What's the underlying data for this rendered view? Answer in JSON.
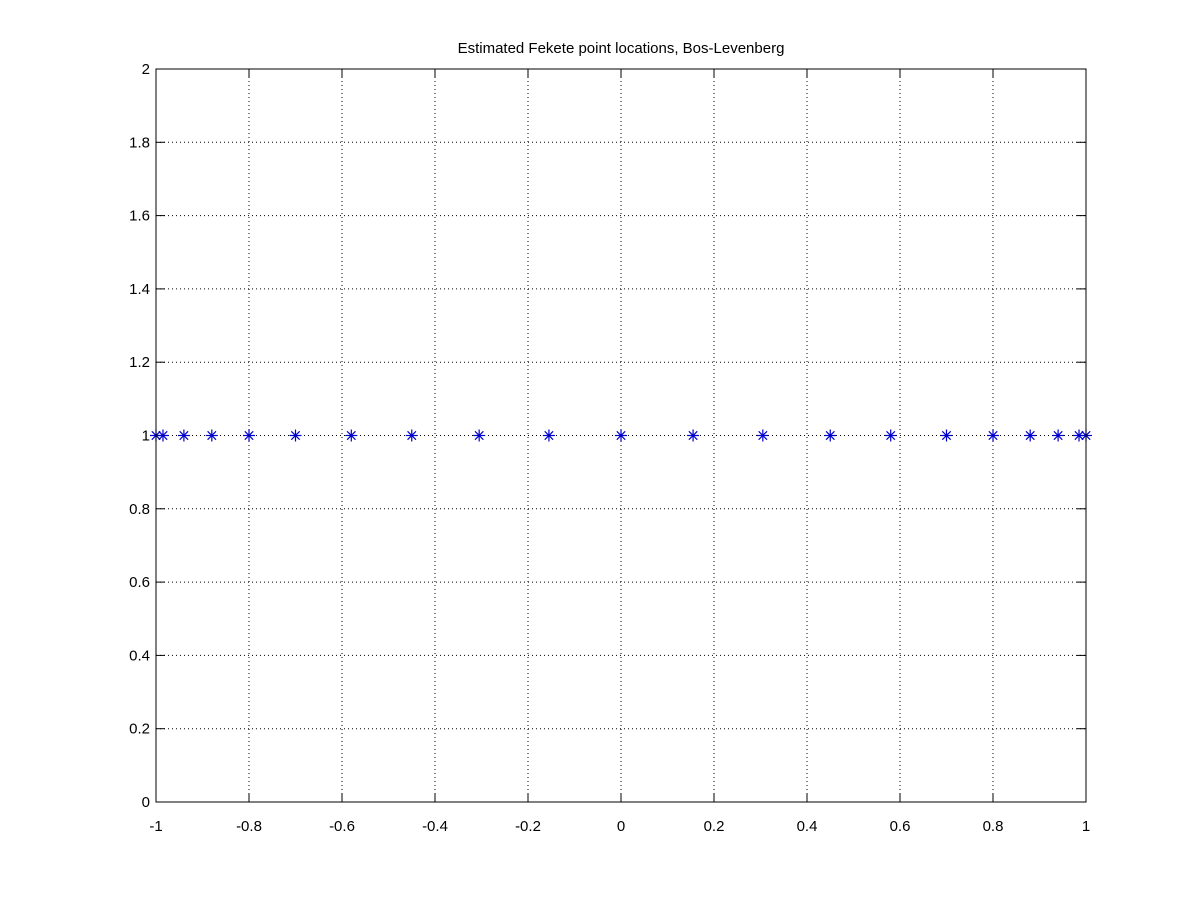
{
  "chart_data": {
    "type": "scatter",
    "title": "Estimated Fekete point locations, Bos-Levenberg",
    "xlabel": "",
    "ylabel": "",
    "xlim": [
      -1,
      1
    ],
    "ylim": [
      0,
      2
    ],
    "grid": true,
    "marker": "asterisk",
    "marker_color": "#0000cc",
    "x_ticks": [
      -1,
      -0.8,
      -0.6,
      -0.4,
      -0.2,
      0,
      0.2,
      0.4,
      0.6,
      0.8,
      1
    ],
    "x_tick_labels": [
      "-1",
      "-0.8",
      "-0.6",
      "-0.4",
      "-0.2",
      "0",
      "0.2",
      "0.4",
      "0.6",
      "0.8",
      "1"
    ],
    "y_ticks": [
      0,
      0.2,
      0.4,
      0.6,
      0.8,
      1,
      1.2,
      1.4,
      1.6,
      1.8,
      2
    ],
    "y_tick_labels": [
      "0",
      "0.2",
      "0.4",
      "0.6",
      "0.8",
      "1",
      "1.2",
      "1.4",
      "1.6",
      "1.8",
      "2"
    ],
    "series": [
      {
        "x": [
          -1,
          -0.985,
          -0.94,
          -0.88,
          -0.8,
          -0.7,
          -0.58,
          -0.45,
          -0.305,
          -0.155,
          0,
          0.155,
          0.305,
          0.45,
          0.58,
          0.7,
          0.8,
          0.88,
          0.94,
          0.985,
          1
        ],
        "y": [
          1,
          1,
          1,
          1,
          1,
          1,
          1,
          1,
          1,
          1,
          1,
          1,
          1,
          1,
          1,
          1,
          1,
          1,
          1,
          1,
          1
        ]
      }
    ]
  }
}
